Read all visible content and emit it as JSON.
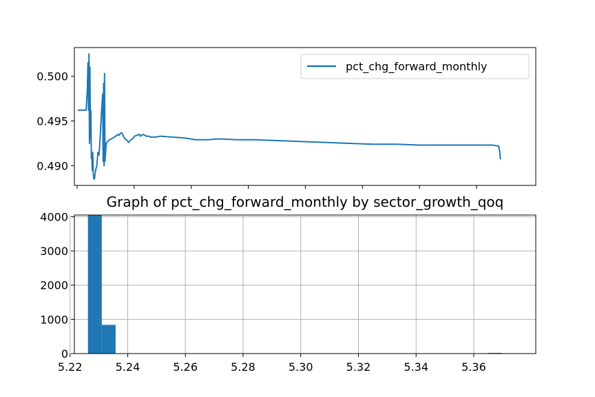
{
  "colors": {
    "series": "#1f77b4",
    "grid": "#b0b0b0",
    "axis": "#000000"
  },
  "chart_data": [
    {
      "type": "line",
      "title": "",
      "xlabel": "",
      "ylabel": "",
      "ylim": [
        0.4878,
        0.5032
      ],
      "yticks": [
        "0.490",
        "0.495",
        "0.500"
      ],
      "ytick_values": [
        0.49,
        0.495,
        0.5
      ],
      "xticks_count": 8,
      "xtick_labels_visible": false,
      "grid": false,
      "legend": {
        "placement": "upper right",
        "entries": [
          "pct_chg_forward_monthly"
        ]
      },
      "series": [
        {
          "name": "pct_chg_forward_monthly",
          "x": [
            0,
            5,
            7,
            8,
            8.5,
            9,
            9.4,
            9.8,
            10.2,
            10.6,
            11,
            11.4,
            11.8,
            12.2,
            12.6,
            13,
            13.4,
            14,
            15,
            16,
            17,
            18,
            19,
            20,
            21,
            21.4,
            21.8,
            22.2,
            22.6,
            23,
            24,
            26,
            28,
            30,
            32,
            34,
            35,
            36,
            37,
            38,
            39,
            40,
            41,
            42,
            43,
            45,
            47,
            48,
            50,
            52,
            53,
            55,
            57,
            58,
            60,
            62,
            64,
            66,
            70,
            80,
            90,
            100,
            110,
            120,
            135,
            150,
            170,
            190,
            210,
            230,
            250,
            270,
            290,
            310,
            330,
            345,
            352,
            357,
            358,
            358.5
          ],
          "y": [
            0.4962,
            0.4962,
            0.4962,
            0.4985,
            0.5015,
            0.4962,
            0.5025,
            0.4925,
            0.501,
            0.493,
            0.4962,
            0.4908,
            0.491,
            0.4895,
            0.4915,
            0.4892,
            0.4886,
            0.4885,
            0.4895,
            0.49,
            0.4915,
            0.4912,
            0.4935,
            0.496,
            0.498,
            0.4905,
            0.4992,
            0.49,
            0.5003,
            0.4905,
            0.4925,
            0.4928,
            0.493,
            0.4931,
            0.4933,
            0.4935,
            0.4934,
            0.4936,
            0.4937,
            0.4935,
            0.4932,
            0.493,
            0.4929,
            0.4928,
            0.4926,
            0.4929,
            0.4931,
            0.4933,
            0.4934,
            0.4935,
            0.4933,
            0.4935,
            0.4934,
            0.4933,
            0.4933,
            0.4932,
            0.4932,
            0.4932,
            0.4933,
            0.4932,
            0.4931,
            0.4929,
            0.4929,
            0.493,
            0.4929,
            0.4929,
            0.4928,
            0.4927,
            0.4926,
            0.4925,
            0.4924,
            0.4924,
            0.4923,
            0.4923,
            0.4923,
            0.4923,
            0.4923,
            0.4922,
            0.4915,
            0.4907
          ]
        }
      ]
    },
    {
      "type": "bar",
      "title": "Graph of pct_chg_forward_monthly by sector_growth_qoq",
      "xlabel": "",
      "ylabel": "",
      "xlim": [
        5.2215,
        5.3815
      ],
      "ylim": [
        0,
        4050
      ],
      "xticks": [
        "5.22",
        "5.24",
        "5.26",
        "5.28",
        "5.30",
        "5.32",
        "5.34",
        "5.36"
      ],
      "xtick_values": [
        5.22,
        5.24,
        5.26,
        5.28,
        5.3,
        5.32,
        5.34,
        5.36
      ],
      "yticks": [
        "0",
        "1000",
        "2000",
        "3000",
        "4000"
      ],
      "ytick_values": [
        0,
        1000,
        2000,
        3000,
        4000
      ],
      "grid": true,
      "bins": [
        {
          "x0": 5.2262,
          "x1": 5.231,
          "value": 4050
        },
        {
          "x0": 5.231,
          "x1": 5.2358,
          "value": 840
        },
        {
          "x0": 5.365,
          "x1": 5.3698,
          "value": 20
        }
      ]
    }
  ]
}
